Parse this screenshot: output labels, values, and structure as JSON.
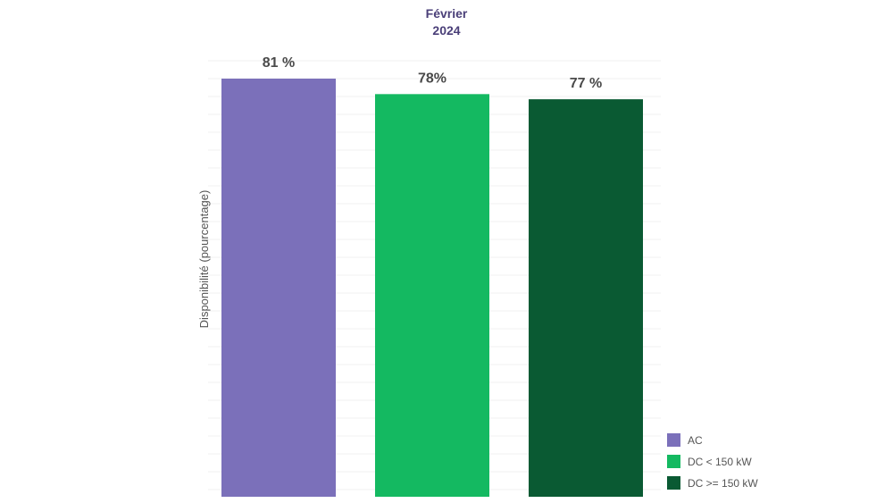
{
  "chart_data": {
    "type": "bar",
    "title": [
      "Février",
      "2024"
    ],
    "ylabel": "Disponibilité (pourcentage)",
    "xlabel": "",
    "categories": [
      "AC",
      "DC < 150 kW",
      "DC >= 150 kW"
    ],
    "values": [
      81,
      78,
      77
    ],
    "value_labels": [
      "81 %",
      "78%",
      "77 %"
    ],
    "colors": [
      "#7b70ba",
      "#14b961",
      "#0a5a33"
    ],
    "ylim": [
      0,
      81
    ],
    "grid": true,
    "legend": {
      "placement": "bottom-right",
      "entries": [
        "AC",
        "DC < 150 kW",
        "DC >= 150 kW"
      ]
    }
  }
}
